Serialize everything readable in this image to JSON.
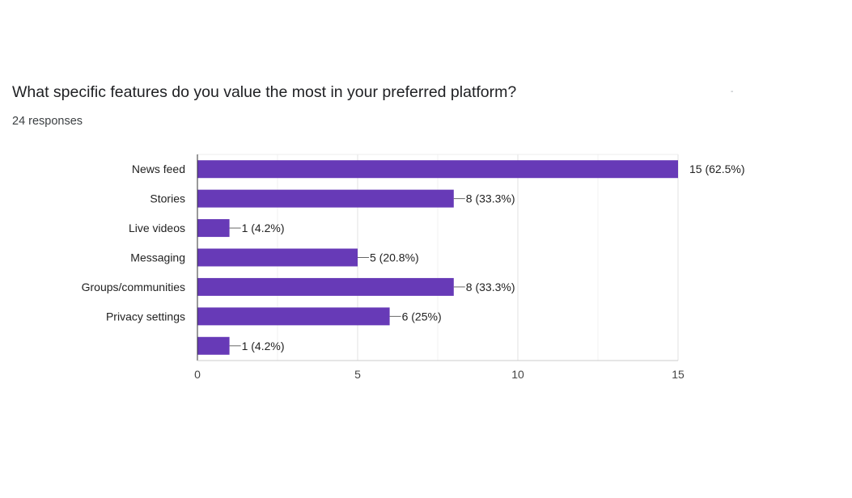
{
  "question": {
    "title": "What specific features do you value the most in your preferred platform?",
    "responses": "24 responses",
    "corner_mark": "-"
  },
  "chart_data": {
    "type": "bar",
    "orientation": "horizontal",
    "categories": [
      "News feed",
      "Stories",
      "Live videos",
      "Messaging",
      "Groups/communities",
      "Privacy settings",
      ""
    ],
    "values": [
      15,
      8,
      1,
      5,
      8,
      6,
      1
    ],
    "value_labels": [
      "15 (62.5%)",
      "8 (33.3%)",
      "1 (4.2%)",
      "5 (20.8%)",
      "8 (33.3%)",
      "6 (25%)",
      "1 (4.2%)"
    ],
    "xlim": [
      0,
      15
    ],
    "xticks": [
      "0",
      "5",
      "10",
      "15"
    ],
    "grid": true,
    "bar_color": "#673ab7"
  }
}
